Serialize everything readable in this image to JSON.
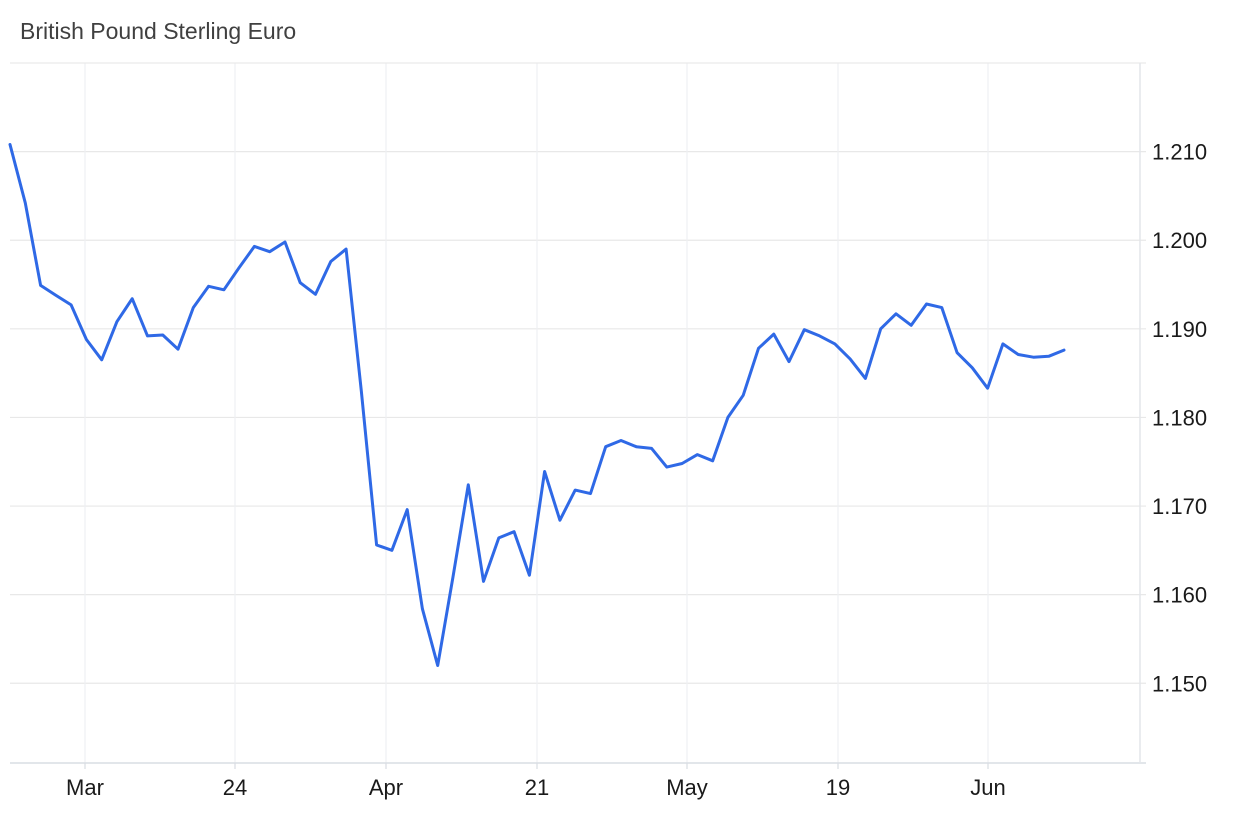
{
  "chart_data": {
    "type": "line",
    "title": "British Pound Sterling Euro",
    "xlabel": "",
    "ylabel": "",
    "ylim": [
      1.141,
      1.22
    ],
    "yticks": [
      "1.150",
      "1.160",
      "1.170",
      "1.180",
      "1.190",
      "1.200",
      "1.210"
    ],
    "xticks": [
      "Mar",
      "24",
      "Apr",
      "21",
      "May",
      "19",
      "Jun"
    ],
    "grid": true,
    "color": "#2f69e6",
    "series": [
      {
        "values": [
          1.2108,
          1.2042,
          1.1949,
          1.1938,
          1.1927,
          1.1888,
          1.1865,
          1.1908,
          1.1934,
          1.1892,
          1.1893,
          1.1877,
          1.1924,
          1.1948,
          1.1944,
          1.1969,
          1.1993,
          1.1987,
          1.1998,
          1.1952,
          1.1939,
          1.1976,
          1.199,
          1.183,
          1.1656,
          1.165,
          1.1696,
          1.1584,
          1.152,
          1.162,
          1.1724,
          1.1615,
          1.1664,
          1.1671,
          1.1622,
          1.1739,
          1.1684,
          1.1718,
          1.1714,
          1.1767,
          1.1774,
          1.1767,
          1.1765,
          1.1744,
          1.1748,
          1.1758,
          1.1751,
          1.18,
          1.1825,
          1.1878,
          1.1894,
          1.1863,
          1.1899,
          1.1892,
          1.1883,
          1.1866,
          1.1844,
          1.19,
          1.1917,
          1.1904,
          1.1928,
          1.1924,
          1.1873,
          1.1856,
          1.1833,
          1.1883,
          1.1871,
          1.1868,
          1.1869,
          1.1876
        ]
      }
    ]
  }
}
